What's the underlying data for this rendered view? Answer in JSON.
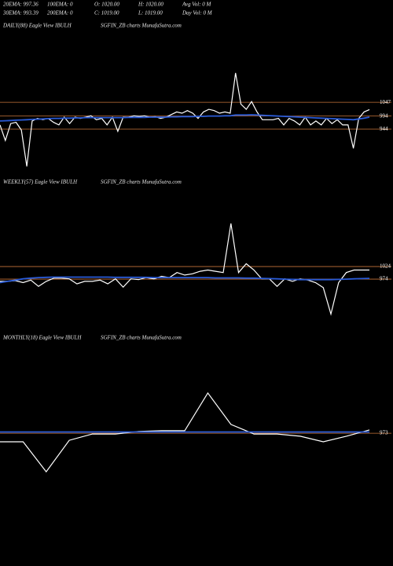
{
  "header": {
    "lines": [
      [
        "20EMA: 997.36",
        "100EMA: 0",
        "O: 1020.00",
        "H: 1020.00",
        "Avg Vol: 0  M"
      ],
      [
        "30EMA: 993.39",
        "200EMA: 0",
        "C: 1019.00",
        "L: 1019.00",
        "Day Vol: 0  M"
      ]
    ]
  },
  "chart_data": [
    {
      "type": "line",
      "title": "DAILY(88) Eagle  View  IBULH",
      "subtitle": "SGFIN_ZB charts MunafaSutra.com",
      "ylim": [
        790,
        1320
      ],
      "yticks": [
        1047,
        994,
        944
      ],
      "grid": true,
      "grid_color": "#c8743a",
      "series": [
        {
          "color": "#ffffff",
          "values": [
            960,
            900,
            965,
            970,
            940,
            800,
            975,
            985,
            980,
            985,
            970,
            960,
            990,
            965,
            990,
            985,
            990,
            995,
            980,
            985,
            960,
            990,
            935,
            990,
            990,
            995,
            993,
            995,
            990,
            992,
            985,
            990,
            1000,
            1010,
            1005,
            1015,
            1005,
            985,
            1010,
            1020,
            1015,
            1005,
            1010,
            1005,
            1160,
            1040,
            1020,
            1050,
            1010,
            980,
            980,
            980,
            985,
            960,
            985,
            975,
            960,
            990,
            960,
            975,
            960,
            985,
            965,
            980,
            960,
            960,
            870,
            985,
            1010,
            1019
          ]
        },
        {
          "color": "#2a5bd7",
          "values": [
            975,
            976,
            977,
            978,
            979,
            980,
            981,
            982,
            983,
            984,
            985,
            985,
            986,
            986,
            987,
            987,
            988,
            988,
            988,
            988,
            988,
            988,
            988,
            988,
            989,
            989,
            989,
            989,
            990,
            990,
            990,
            990,
            991,
            991,
            992,
            992,
            992,
            993,
            993,
            994,
            994,
            994,
            995,
            995,
            998,
            998,
            998,
            999,
            998,
            997,
            996,
            995,
            994,
            993,
            992,
            991,
            990,
            989,
            988,
            987,
            986,
            985,
            984,
            983,
            982,
            981,
            980,
            983,
            986,
            990
          ]
        }
      ]
    },
    {
      "type": "line",
      "title": "WEEKLY(57) Eagle  View  IBULH",
      "subtitle": "SGFIN_ZB charts MunafaSutra.com",
      "ylim": [
        818,
        1349
      ],
      "yticks": [
        1024,
        974
      ],
      "grid": true,
      "grid_color": "#c8743a",
      "series": [
        {
          "color": "#ffffff",
          "values": [
            965,
            965,
            968,
            960,
            970,
            945,
            965,
            978,
            978,
            975,
            955,
            965,
            965,
            970,
            955,
            975,
            942,
            975,
            972,
            980,
            975,
            985,
            980,
            1000,
            990,
            995,
            1005,
            1010,
            1005,
            1000,
            1195,
            1000,
            1035,
            1010,
            975,
            975,
            945,
            975,
            965,
            975,
            970,
            960,
            940,
            835,
            960,
            1000,
            1010,
            1010,
            1010
          ]
        },
        {
          "color": "#2a5bd7",
          "values": [
            960,
            965,
            970,
            975,
            978,
            980,
            981,
            982,
            982,
            982,
            982,
            982,
            982,
            982,
            982,
            981,
            981,
            981,
            981,
            981,
            980,
            980,
            980,
            980,
            980,
            980,
            980,
            980,
            979,
            979,
            979,
            979,
            978,
            978,
            977,
            976,
            975,
            974,
            973,
            972,
            972,
            972,
            972,
            972,
            973,
            974,
            975,
            976,
            977
          ]
        }
      ]
    },
    {
      "type": "line",
      "title": "MONTHLY(18) Eagle  View  IBULH",
      "subtitle": "SGFIN_ZB charts MunafaSutra.com",
      "ylim": [
        789,
        1320
      ],
      "yticks": [
        973
      ],
      "grid": true,
      "grid_color": "#c8743a",
      "series": [
        {
          "color": "#ffffff",
          "values": [
            939,
            939,
            820,
            945,
            970,
            970,
            980,
            983,
            983,
            1133,
            1008,
            970,
            970,
            961,
            939,
            961,
            986
          ]
        },
        {
          "color": "#2a5bd7",
          "values": [
            978,
            978,
            978,
            978,
            978,
            978,
            978,
            978,
            978,
            978,
            978,
            978,
            978,
            978,
            978,
            978,
            978
          ]
        }
      ]
    }
  ]
}
